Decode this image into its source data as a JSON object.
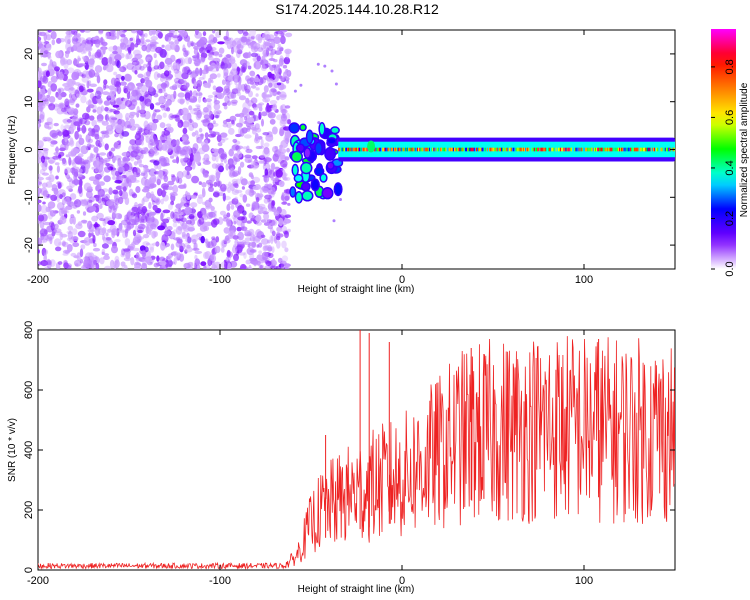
{
  "title": "S174.2025.144.10.28.R12",
  "chart_data": [
    {
      "type": "heatmap",
      "xlabel": "Height of straight line (km)",
      "ylabel": "Frequency (Hz)",
      "xlim": [
        -200,
        150
      ],
      "ylim": [
        -25,
        25
      ],
      "x_ticks": [
        -200,
        -100,
        0,
        100
      ],
      "y_ticks": [
        -20,
        -10,
        0,
        10,
        20
      ],
      "colorbar": {
        "label": "Normalized spectral amplitude",
        "range": [
          0,
          0.95
        ],
        "ticks": [
          0.0,
          0.2,
          0.4,
          0.6,
          0.8
        ],
        "tick_labels": [
          "0.0",
          "0.2",
          "0.4",
          "0.6",
          "0.8"
        ],
        "colormap": [
          "#ffffff",
          "#7700ff",
          "#0000ff",
          "#00ffff",
          "#00ff00",
          "#ffff00",
          "#ff7f00",
          "#ff0000",
          "#ff00ff"
        ]
      },
      "regions": [
        {
          "description_x_range": [
            -200,
            -62
          ],
          "frequency_range": [
            -25,
            25
          ],
          "amplitude_range": [
            0.0,
            0.12
          ]
        },
        {
          "x_range": [
            -60,
            -35
          ],
          "frequency_range": [
            -10,
            5
          ],
          "amplitude_range": [
            0.1,
            0.5
          ]
        },
        {
          "x_range": [
            -35,
            150
          ],
          "center_frequency": 0,
          "band_halfwidth": 2.5,
          "amplitude_range": [
            0.2,
            0.9
          ]
        }
      ]
    },
    {
      "type": "line",
      "xlabel": "Height of straight line (km)",
      "ylabel": "SNR (10 * v/v)",
      "xlim": [
        -200,
        150
      ],
      "ylim": [
        0,
        800
      ],
      "x_ticks": [
        -200,
        -100,
        0,
        100
      ],
      "y_ticks": [
        0,
        200,
        400,
        600,
        800
      ],
      "color": "#ee2222",
      "envelope": {
        "x": [
          -200,
          -65,
          -58,
          -50,
          -45,
          -40,
          -35,
          -30,
          -20,
          -10,
          0,
          10,
          20,
          30,
          40,
          60,
          80,
          100,
          120,
          150
        ],
        "y": [
          15,
          15,
          60,
          200,
          250,
          280,
          300,
          320,
          350,
          380,
          400,
          450,
          500,
          560,
          590,
          600,
          620,
          610,
          600,
          600
        ]
      },
      "spikes": [
        {
          "x": -42,
          "y": 450
        },
        {
          "x": -23,
          "y": 800
        },
        {
          "x": -18,
          "y": 790
        },
        {
          "x": -7,
          "y": 760
        },
        {
          "x": 38,
          "y": 740
        },
        {
          "x": 108,
          "y": 770
        },
        {
          "x": 45,
          "y": 720
        }
      ]
    }
  ]
}
